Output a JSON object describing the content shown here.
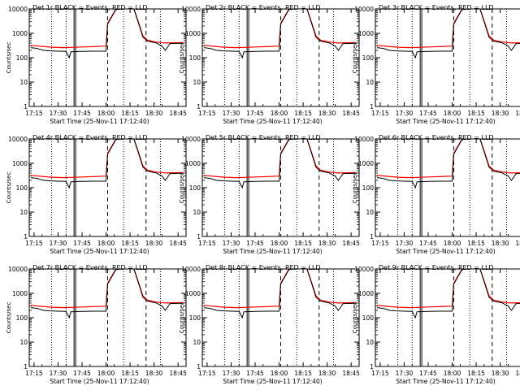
{
  "chart_data": [
    {
      "type": "line",
      "title": "Det 1r BLACK = Events, RED = LLD"
    },
    {
      "type": "line",
      "title": "Det 2r BLACK = Events, RED = LLD"
    },
    {
      "type": "line",
      "title": "Det 3r BLACK = Events, RED = LLD"
    },
    {
      "type": "line",
      "title": "Det 4r BLACK = Events, RED = LLD"
    },
    {
      "type": "line",
      "title": "Det 5r BLACK = Events, RED = LLD"
    },
    {
      "type": "line",
      "title": "Det 6r BLACK = Events, RED = LLD"
    },
    {
      "type": "line",
      "title": "Det 7r BLACK = Events, RED = LLD"
    },
    {
      "type": "line",
      "title": "Det 8r BLACK = Events, RED = LLD"
    },
    {
      "type": "line",
      "title": "Det 9r BLACK = Events, RED = LLD"
    }
  ],
  "shared": {
    "xlabel": "Start Time (25-Nov-11 17:12:40)",
    "ylabel": "Counts/sec",
    "y_scale": "log",
    "ylim": [
      1,
      10000
    ],
    "y_ticks": [
      "1",
      "10",
      "100",
      "1000",
      "10000"
    ],
    "x_ticks": [
      "17:15",
      "17:30",
      "17:45",
      "18:00",
      "18:15",
      "18:30",
      "18:45"
    ],
    "colors": {
      "events": "#000000",
      "lld": "#ff0000"
    },
    "vlines": [
      {
        "style": "dotted",
        "time": "17:26"
      },
      {
        "style": "dotted",
        "time": "17:35"
      },
      {
        "style": "solid",
        "time": "17:40"
      },
      {
        "style": "solid",
        "time": "17:41"
      },
      {
        "style": "dashed",
        "time": "18:01"
      },
      {
        "style": "dotted",
        "time": "18:11"
      },
      {
        "style": "dashed",
        "time": "18:25"
      },
      {
        "style": "dotted",
        "time": "18:34"
      }
    ],
    "series": [
      {
        "label": "LLD",
        "color": "#ff0000",
        "points": [
          [
            "17:13",
            320
          ],
          [
            "17:20",
            290
          ],
          [
            "17:26",
            270
          ],
          [
            "17:33",
            260
          ],
          [
            "17:39",
            265
          ],
          [
            "17:45",
            275
          ],
          [
            "17:52",
            285
          ],
          [
            "18:00",
            300
          ],
          [
            "18:01",
            2600
          ],
          [
            "18:06",
            9500
          ],
          [
            "18:10",
            12000
          ],
          [
            "18:17",
            12000
          ],
          [
            "18:20",
            3200
          ],
          [
            "18:23",
            800
          ],
          [
            "18:26",
            520
          ],
          [
            "18:31",
            440
          ],
          [
            "18:37",
            400
          ],
          [
            "18:43",
            410
          ],
          [
            "18:48",
            420
          ]
        ]
      },
      {
        "label": "Events",
        "color": "#000000",
        "points": [
          [
            "17:13",
            260
          ],
          [
            "17:17",
            240
          ],
          [
            "17:21",
            200
          ],
          [
            "17:25",
            190
          ],
          [
            "17:30",
            185
          ],
          [
            "17:35",
            180
          ],
          [
            "17:37",
            100
          ],
          [
            "17:38",
            175
          ],
          [
            "17:45",
            180
          ],
          [
            "17:52",
            185
          ],
          [
            "18:00",
            185
          ],
          [
            "18:01",
            2400
          ],
          [
            "18:06",
            9000
          ],
          [
            "18:10",
            12000
          ],
          [
            "18:17",
            12000
          ],
          [
            "18:20",
            3000
          ],
          [
            "18:23",
            700
          ],
          [
            "18:26",
            480
          ],
          [
            "18:31",
            410
          ],
          [
            "18:35",
            300
          ],
          [
            "18:37",
            200
          ],
          [
            "18:40",
            380
          ],
          [
            "18:48",
            390
          ]
        ]
      }
    ]
  }
}
